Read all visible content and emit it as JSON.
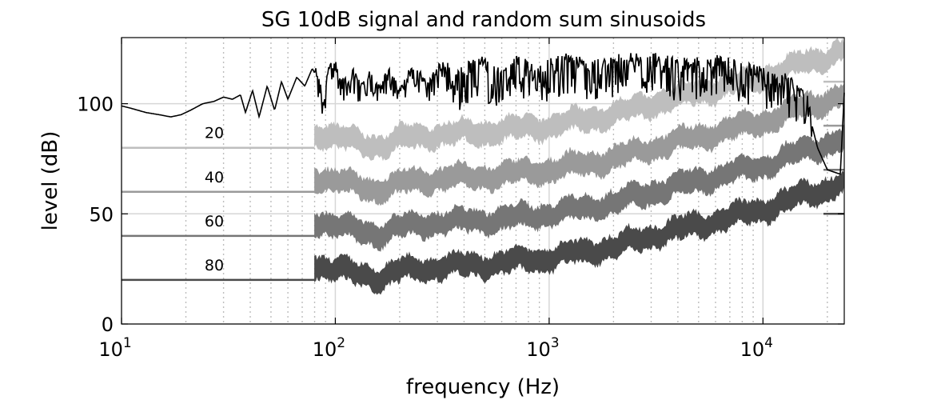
{
  "chart_data": {
    "type": "line",
    "title": "SG 10dB signal and random sum sinusoids",
    "xlabel": "frequency (Hz)",
    "ylabel": "level (dB)",
    "xscale": "log",
    "xlim": [
      10,
      24000
    ],
    "ylim": [
      0,
      130
    ],
    "grid": true,
    "x_ticks": [
      {
        "value": 10,
        "base": "10",
        "exp": "1"
      },
      {
        "value": 100,
        "base": "10",
        "exp": "2"
      },
      {
        "value": 1000,
        "base": "10",
        "exp": "3"
      },
      {
        "value": 10000,
        "base": "10",
        "exp": "4"
      }
    ],
    "y_ticks": [
      {
        "value": 0,
        "label": "0"
      },
      {
        "value": 50,
        "label": "50"
      },
      {
        "value": 100,
        "label": "100"
      }
    ],
    "signal": {
      "name": "signal",
      "color": "#000000",
      "points": [
        [
          10,
          99
        ],
        [
          11,
          98
        ],
        [
          13,
          96
        ],
        [
          15,
          95
        ],
        [
          17,
          94
        ],
        [
          19,
          95
        ],
        [
          21,
          97
        ],
        [
          24,
          100
        ],
        [
          27,
          101
        ],
        [
          30,
          103
        ],
        [
          33,
          102
        ],
        [
          36,
          104
        ],
        [
          38,
          96
        ],
        [
          41,
          106
        ],
        [
          44,
          94
        ],
        [
          48,
          108
        ],
        [
          52,
          97
        ],
        [
          56,
          110
        ],
        [
          60,
          102
        ],
        [
          66,
          112
        ],
        [
          72,
          108
        ],
        [
          78,
          116
        ],
        [
          84,
          110
        ],
        [
          88,
          97
        ],
        [
          92,
          114
        ],
        [
          100,
          117
        ],
        [
          110,
          108
        ],
        [
          120,
          114
        ],
        [
          130,
          107
        ],
        [
          145,
          113
        ],
        [
          160,
          106
        ],
        [
          180,
          115
        ],
        [
          200,
          104
        ],
        [
          230,
          116
        ],
        [
          270,
          108
        ],
        [
          320,
          117
        ],
        [
          380,
          110
        ],
        [
          450,
          118
        ],
        [
          550,
          112
        ],
        [
          700,
          118
        ],
        [
          900,
          113
        ],
        [
          1200,
          118
        ],
        [
          1600,
          114
        ],
        [
          2000,
          117
        ],
        [
          3000,
          118
        ],
        [
          4000,
          115
        ],
        [
          6000,
          117
        ],
        [
          8000,
          114
        ],
        [
          10000,
          112
        ],
        [
          13000,
          108
        ],
        [
          16000,
          100
        ],
        [
          18000,
          80
        ],
        [
          20000,
          70
        ],
        [
          23000,
          68
        ],
        [
          24000,
          105
        ]
      ]
    },
    "series": [
      {
        "name": "20",
        "label": "20",
        "color": "#bebebe",
        "flat_level": 80,
        "band_start_hz": 80,
        "band_halfwidth_db": 6,
        "x": [
          80,
          100,
          130,
          160,
          200,
          300,
          500,
          1000,
          2000,
          3000,
          5000,
          10000,
          15000,
          24000
        ],
        "values": [
          87,
          85,
          82,
          81,
          84,
          86,
          87,
          90,
          95,
          100,
          105,
          112,
          118,
          124
        ]
      },
      {
        "name": "40",
        "label": "40",
        "color": "#9a9a9a",
        "flat_level": 60,
        "band_start_hz": 80,
        "band_halfwidth_db": 6,
        "x": [
          80,
          100,
          130,
          160,
          200,
          300,
          500,
          1000,
          2000,
          3000,
          5000,
          10000,
          15000,
          24000
        ],
        "values": [
          67,
          65,
          62,
          61,
          64,
          66,
          67,
          70,
          75,
          80,
          85,
          92,
          98,
          104
        ]
      },
      {
        "name": "60",
        "label": "60",
        "color": "#767676",
        "flat_level": 40,
        "band_start_hz": 80,
        "band_halfwidth_db": 6,
        "x": [
          80,
          100,
          130,
          160,
          200,
          300,
          500,
          1000,
          2000,
          3000,
          5000,
          10000,
          15000,
          24000
        ],
        "values": [
          47,
          45,
          42,
          41,
          44,
          46,
          47,
          50,
          55,
          60,
          65,
          72,
          78,
          84
        ]
      },
      {
        "name": "80",
        "label": "80",
        "color": "#4a4a4a",
        "flat_level": 20,
        "band_start_hz": 80,
        "band_halfwidth_db": 6,
        "x": [
          80,
          100,
          130,
          160,
          200,
          300,
          500,
          1000,
          2000,
          3000,
          5000,
          10000,
          15000,
          24000
        ],
        "values": [
          27,
          25,
          22,
          21,
          24,
          26,
          27,
          30,
          35,
          40,
          45,
          52,
          58,
          64
        ]
      }
    ]
  }
}
